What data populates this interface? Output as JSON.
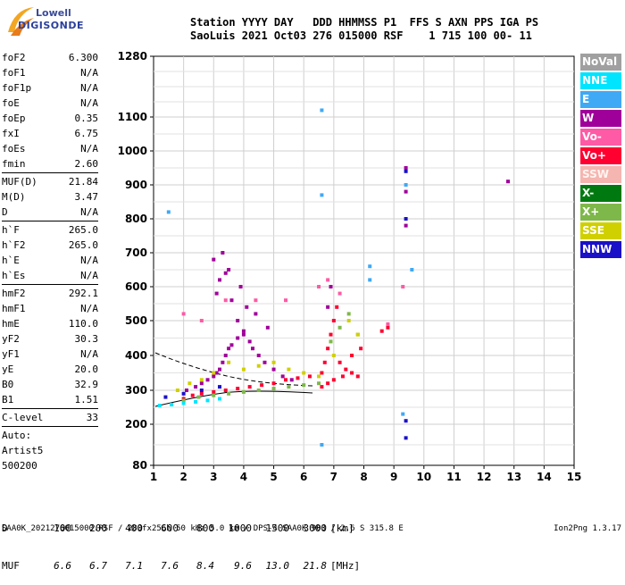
{
  "logo": {
    "line1": "Lowell",
    "line2": "DIGISONDE"
  },
  "header": {
    "labels": "Station YYYY DAY   DDD HHMMSS P1  FFS S AXN PPS IGA PS",
    "values": "SaoLuis 2021 Oct03 276 015000 RSF    1 715 100 00- 11"
  },
  "parameters": [
    [
      {
        "name": "foF2",
        "value": "6.300"
      },
      {
        "name": "foF1",
        "value": "N/A"
      },
      {
        "name": "foF1p",
        "value": "N/A"
      },
      {
        "name": "foE",
        "value": "N/A"
      },
      {
        "name": "foEp",
        "value": "0.35"
      },
      {
        "name": "fxI",
        "value": "6.75"
      },
      {
        "name": "foEs",
        "value": "N/A"
      },
      {
        "name": "fmin",
        "value": "2.60"
      }
    ],
    [
      {
        "name": "MUF(D)",
        "value": "21.84"
      },
      {
        "name": "M(D)",
        "value": "3.47"
      },
      {
        "name": "D",
        "value": "N/A"
      }
    ],
    [
      {
        "name": "h`F",
        "value": "265.0"
      },
      {
        "name": "h`F2",
        "value": "265.0"
      },
      {
        "name": "h`E",
        "value": "N/A"
      },
      {
        "name": "h`Es",
        "value": "N/A"
      }
    ],
    [
      {
        "name": "hmF2",
        "value": "292.1"
      },
      {
        "name": "hmF1",
        "value": "N/A"
      },
      {
        "name": "hmE",
        "value": "110.0"
      },
      {
        "name": "yF2",
        "value": "30.3"
      },
      {
        "name": "yF1",
        "value": "N/A"
      },
      {
        "name": "yE",
        "value": "20.0"
      },
      {
        "name": "B0",
        "value": "32.9"
      },
      {
        "name": "B1",
        "value": "1.51"
      }
    ],
    [
      {
        "name": "C-level",
        "value": "33"
      }
    ]
  ],
  "auto": [
    "Auto:",
    "Artist5",
    "500200"
  ],
  "legend": [
    {
      "label": "NoVal",
      "color": "#a0a0a0"
    },
    {
      "label": "NNE",
      "color": "#00e5ff"
    },
    {
      "label": "E",
      "color": "#3fa9f5"
    },
    {
      "label": "W",
      "color": "#a0009a"
    },
    {
      "label": "Vo-",
      "color": "#ff5aa5"
    },
    {
      "label": "Vo+",
      "color": "#ff0030"
    },
    {
      "label": "SSW",
      "color": "#f5b5b0"
    },
    {
      "label": "X-",
      "color": "#007a10"
    },
    {
      "label": "X+",
      "color": "#7fb84a"
    },
    {
      "label": "SSE",
      "color": "#d0d000"
    },
    {
      "label": "NNW",
      "color": "#1a10c8"
    }
  ],
  "muf_table": {
    "d_label": "D",
    "d_values": [
      "100",
      "200",
      "400",
      "600",
      "800",
      "1000",
      "1500",
      "3000"
    ],
    "d_unit": "[km]",
    "muf_label": "MUF",
    "muf_values": [
      "6.6",
      "6.7",
      "7.1",
      "7.6",
      "8.4",
      "9.6",
      "13.0",
      "21.8"
    ],
    "muf_unit": "[MHz]"
  },
  "footer": {
    "left": "SAA0K_2021276015000.RSF / 280fx256h 50 kHz 5.0 km / DPS-4 SAA0K 903 / 2.6 S 315.8 E",
    "right": "Ion2Png 1.3.17"
  },
  "chart_data": {
    "type": "scatter",
    "xlim": [
      1,
      15
    ],
    "ylim": [
      80,
      1280
    ],
    "xticks": [
      "1",
      "2",
      "3",
      "4",
      "5",
      "6",
      "7",
      "8",
      "9",
      "10",
      "11",
      "12",
      "13",
      "14",
      "15"
    ],
    "yticks": [
      "80",
      "200",
      "300",
      "400",
      "500",
      "600",
      "700",
      "800",
      "900",
      "1000",
      "1100",
      "1280"
    ],
    "ytick_values": [
      80,
      200,
      300,
      400,
      500,
      600,
      700,
      800,
      900,
      1000,
      1100,
      1280
    ],
    "grid": true,
    "series": [
      {
        "name": "W",
        "color": "#a0009a",
        "x": [
          2.1,
          2.4,
          2.6,
          2.8,
          3.0,
          3.1,
          3.2,
          3.3,
          3.4,
          3.5,
          3.6,
          3.8,
          4.0,
          4.2,
          4.3,
          4.5,
          4.7,
          5.0,
          5.3,
          5.6,
          3.1,
          3.2,
          3.4,
          3.6,
          3.8,
          4.0,
          4.4,
          4.8,
          3.0,
          3.3,
          3.5,
          3.9,
          4.1,
          6.8,
          6.9,
          9.4,
          9.4,
          9.4,
          12.8
        ],
        "y": [
          300,
          310,
          320,
          330,
          340,
          350,
          360,
          380,
          400,
          420,
          430,
          450,
          460,
          440,
          420,
          400,
          380,
          360,
          340,
          330,
          580,
          620,
          640,
          560,
          500,
          470,
          520,
          480,
          680,
          700,
          650,
          600,
          540,
          540,
          600,
          950,
          880,
          780,
          910
        ]
      },
      {
        "name": "Vo+",
        "color": "#ff0030",
        "x": [
          2.0,
          2.3,
          2.6,
          3.0,
          3.4,
          3.8,
          4.2,
          4.6,
          5.0,
          5.4,
          5.8,
          6.2,
          6.6,
          6.7,
          6.8,
          6.9,
          7.0,
          7.1,
          7.2,
          7.4,
          7.6,
          7.8,
          6.6,
          6.8,
          7.0,
          7.3,
          7.6,
          7.9,
          8.6,
          8.8
        ],
        "y": [
          275,
          285,
          290,
          295,
          300,
          305,
          310,
          315,
          320,
          330,
          335,
          340,
          350,
          380,
          420,
          460,
          500,
          540,
          380,
          360,
          350,
          340,
          310,
          320,
          330,
          340,
          400,
          420,
          470,
          480
        ]
      },
      {
        "name": "X+",
        "color": "#7fb84a",
        "x": [
          2.0,
          2.5,
          3.0,
          3.5,
          4.0,
          4.5,
          5.0,
          5.5,
          6.0,
          6.5,
          6.9,
          7.2,
          7.5,
          7.8
        ],
        "y": [
          270,
          280,
          285,
          290,
          295,
          300,
          305,
          310,
          315,
          320,
          440,
          480,
          520,
          460
        ]
      },
      {
        "name": "SSE",
        "color": "#d0d000",
        "x": [
          1.8,
          2.2,
          2.6,
          3.0,
          3.5,
          4.0,
          4.5,
          5.0,
          5.5,
          6.0,
          6.5,
          7.0,
          7.5,
          7.8
        ],
        "y": [
          300,
          320,
          330,
          350,
          380,
          360,
          370,
          380,
          360,
          350,
          340,
          400,
          500,
          460
        ]
      },
      {
        "name": "NNE",
        "color": "#00e5ff",
        "x": [
          1.2,
          1.6,
          2.0,
          2.4,
          2.8,
          3.2
        ],
        "y": [
          255,
          258,
          262,
          266,
          270,
          275
        ]
      },
      {
        "name": "E",
        "color": "#3fa9f5",
        "x": [
          1.5,
          6.6,
          6.6,
          6.6,
          8.2,
          8.2,
          9.3,
          9.4,
          9.6
        ],
        "y": [
          820,
          1120,
          870,
          140,
          660,
          620,
          230,
          900,
          650
        ]
      },
      {
        "name": "NNW",
        "color": "#1a10c8",
        "x": [
          1.4,
          2.0,
          2.6,
          3.2,
          9.4,
          9.4,
          9.4,
          9.4
        ],
        "y": [
          280,
          290,
          300,
          310,
          940,
          800,
          210,
          160
        ]
      },
      {
        "name": "Vo-",
        "color": "#ff5aa5",
        "x": [
          2.0,
          2.6,
          3.4,
          4.4,
          5.4,
          6.5,
          6.8,
          7.2,
          8.8,
          9.3
        ],
        "y": [
          520,
          500,
          560,
          560,
          560,
          600,
          620,
          580,
          490,
          600
        ]
      }
    ]
  }
}
